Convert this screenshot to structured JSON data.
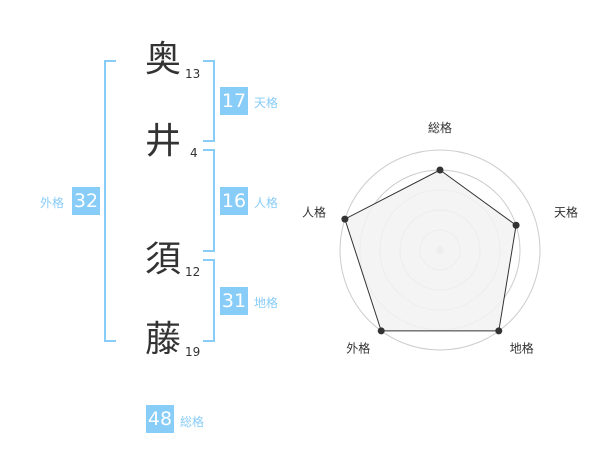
{
  "name_chars": [
    {
      "char": "奥",
      "strokes": "13"
    },
    {
      "char": "井",
      "strokes": "4"
    },
    {
      "char": "須",
      "strokes": "12"
    },
    {
      "char": "藤",
      "strokes": "19"
    }
  ],
  "kaku": {
    "tenkaku": {
      "value": "17",
      "label": "天格"
    },
    "jinkaku": {
      "value": "16",
      "label": "人格"
    },
    "chikaku": {
      "value": "31",
      "label": "地格"
    },
    "gaikaku": {
      "value": "32",
      "label": "外格"
    },
    "soukaku": {
      "value": "48",
      "label": "総格"
    }
  },
  "colors": {
    "accent": "#88ccf8",
    "text": "#333333",
    "radar_fill": "#f2f2f2",
    "radar_line": "#333333",
    "grid": "#cccccc"
  },
  "chart_data": {
    "type": "radar",
    "categories": [
      "総格",
      "天格",
      "地格",
      "外格",
      "人格"
    ],
    "values": [
      4,
      4,
      5,
      5,
      5
    ],
    "range": [
      0,
      5
    ],
    "rings": 5
  }
}
